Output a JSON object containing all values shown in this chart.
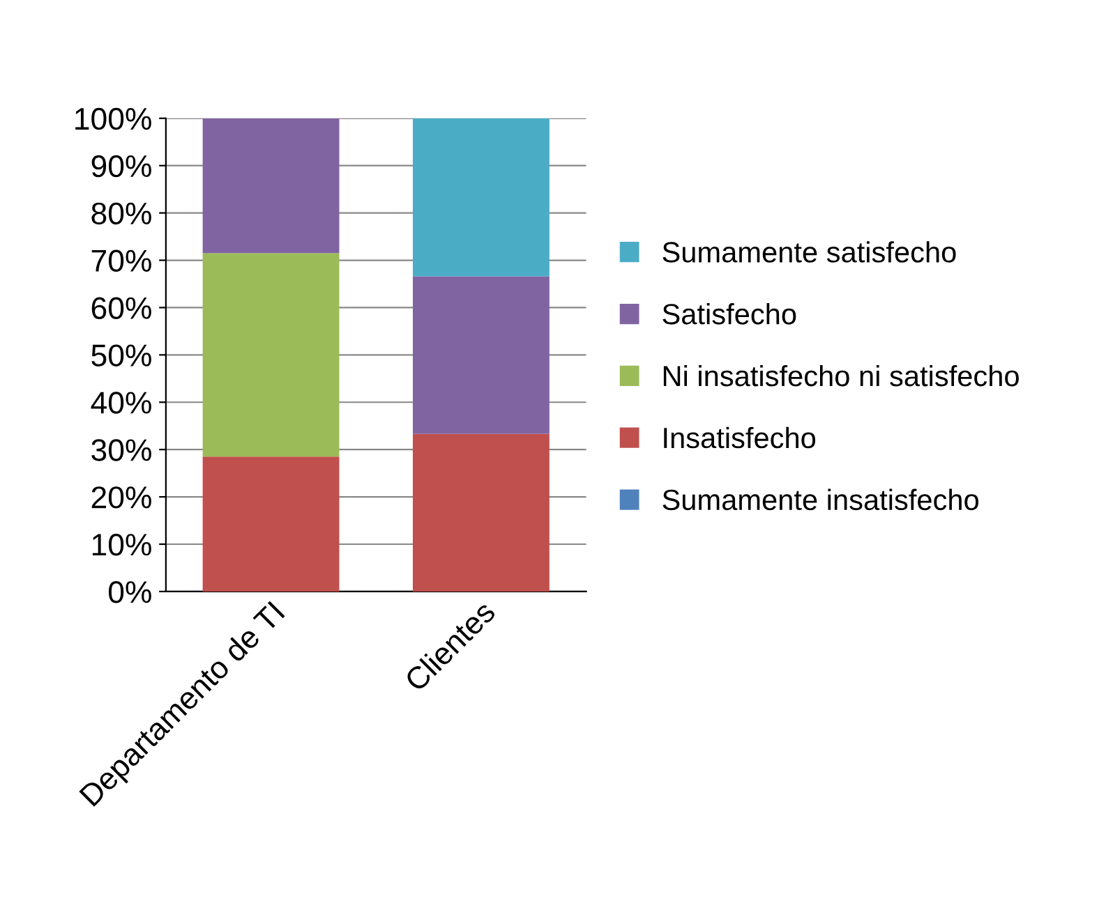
{
  "chart_data": {
    "type": "bar",
    "stacked": true,
    "categories": [
      "Departamento de TI",
      "Clientes"
    ],
    "series": [
      {
        "name": "Sumamente insatisfecho",
        "color": "#4f81bd",
        "values": [
          0,
          0
        ]
      },
      {
        "name": "Insatisfecho",
        "color": "#c0504d",
        "values": [
          28.5,
          33.3
        ]
      },
      {
        "name": "Ni insatisfecho ni satisfecho",
        "color": "#9bbb59",
        "values": [
          43,
          0
        ]
      },
      {
        "name": "Satisfecho",
        "color": "#8064a2",
        "values": [
          28.5,
          33.3
        ]
      },
      {
        "name": "Sumamente satisfecho",
        "color": "#4bacc6",
        "values": [
          0,
          33.4
        ]
      }
    ],
    "ylim": [
      0,
      100
    ],
    "yticks": [
      {
        "value": 0,
        "label": "0%"
      },
      {
        "value": 10,
        "label": "10%"
      },
      {
        "value": 20,
        "label": "20%"
      },
      {
        "value": 30,
        "label": "30%"
      },
      {
        "value": 40,
        "label": "40%"
      },
      {
        "value": 50,
        "label": "50%"
      },
      {
        "value": 60,
        "label": "60%"
      },
      {
        "value": 70,
        "label": "70%"
      },
      {
        "value": 80,
        "label": "80%"
      },
      {
        "value": 90,
        "label": "90%"
      },
      {
        "value": 100,
        "label": "100%"
      }
    ],
    "grid": "y",
    "legend": "right"
  }
}
